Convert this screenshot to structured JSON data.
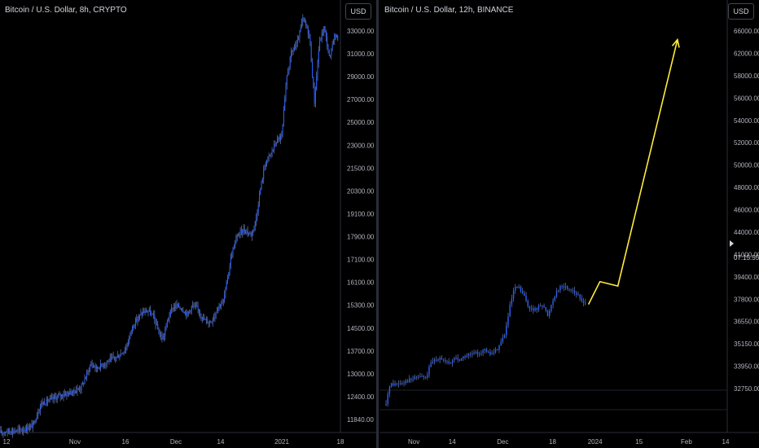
{
  "chart_data": [
    {
      "type": "candlestick",
      "title": "Bitcoin / U.S. Dollar, 8h, CRYPTO",
      "currency": "USD",
      "ytick_labels": [
        "33000.00",
        "31000.00",
        "29000.00",
        "27000.00",
        "25000.00",
        "23000.00",
        "21500.00",
        "20300.00",
        "19100.00",
        "17900.00",
        "17100.00",
        "16100.00",
        "15300.00",
        "14500.00",
        "13700.00",
        "13000.00",
        "12400.00",
        "11840.00"
      ],
      "xtick_labels": [
        "12",
        "Nov",
        "16",
        "Dec",
        "14",
        "2021",
        "18"
      ],
      "x_domain": [
        0,
        415
      ],
      "xtick_positions": [
        8,
        92,
        154,
        216,
        271,
        346,
        418
      ],
      "ylim": [
        11500,
        36500
      ],
      "price_path": [
        {
          "x": 0,
          "y": 11500
        },
        {
          "x": 10,
          "y": 11600
        },
        {
          "x": 20,
          "y": 11600
        },
        {
          "x": 30,
          "y": 11700
        },
        {
          "x": 40,
          "y": 11900
        },
        {
          "x": 45,
          "y": 12500
        },
        {
          "x": 50,
          "y": 13200
        },
        {
          "x": 60,
          "y": 13400
        },
        {
          "x": 70,
          "y": 13600
        },
        {
          "x": 80,
          "y": 13800
        },
        {
          "x": 90,
          "y": 13900
        },
        {
          "x": 100,
          "y": 14200
        },
        {
          "x": 107,
          "y": 15000
        },
        {
          "x": 112,
          "y": 15600
        },
        {
          "x": 118,
          "y": 15300
        },
        {
          "x": 125,
          "y": 15500
        },
        {
          "x": 135,
          "y": 15800
        },
        {
          "x": 145,
          "y": 16000
        },
        {
          "x": 155,
          "y": 16500
        },
        {
          "x": 162,
          "y": 17700
        },
        {
          "x": 168,
          "y": 18200
        },
        {
          "x": 175,
          "y": 18600
        },
        {
          "x": 182,
          "y": 18700
        },
        {
          "x": 189,
          "y": 18300
        },
        {
          "x": 195,
          "y": 17400
        },
        {
          "x": 200,
          "y": 17000
        },
        {
          "x": 206,
          "y": 18200
        },
        {
          "x": 212,
          "y": 18900
        },
        {
          "x": 218,
          "y": 19000
        },
        {
          "x": 224,
          "y": 18800
        },
        {
          "x": 230,
          "y": 18500
        },
        {
          "x": 236,
          "y": 19000
        },
        {
          "x": 243,
          "y": 18800
        },
        {
          "x": 250,
          "y": 18200
        },
        {
          "x": 257,
          "y": 18000
        },
        {
          "x": 262,
          "y": 18300
        },
        {
          "x": 268,
          "y": 19000
        },
        {
          "x": 274,
          "y": 19200
        },
        {
          "x": 279,
          "y": 20500
        },
        {
          "x": 284,
          "y": 22000
        },
        {
          "x": 292,
          "y": 23200
        },
        {
          "x": 300,
          "y": 23500
        },
        {
          "x": 308,
          "y": 23200
        },
        {
          "x": 314,
          "y": 24000
        },
        {
          "x": 320,
          "y": 26000
        },
        {
          "x": 326,
          "y": 27500
        },
        {
          "x": 333,
          "y": 28000
        },
        {
          "x": 340,
          "y": 28800
        },
        {
          "x": 346,
          "y": 29000
        },
        {
          "x": 352,
          "y": 32500
        },
        {
          "x": 358,
          "y": 34000
        },
        {
          "x": 365,
          "y": 34500
        },
        {
          "x": 372,
          "y": 36000
        },
        {
          "x": 380,
          "y": 35000
        },
        {
          "x": 386,
          "y": 31000
        },
        {
          "x": 392,
          "y": 34500
        },
        {
          "x": 398,
          "y": 35500
        },
        {
          "x": 405,
          "y": 33500
        },
        {
          "x": 410,
          "y": 35000
        },
        {
          "x": 415,
          "y": 34800
        }
      ]
    },
    {
      "type": "candlestick",
      "title": "Bitcoin / U.S. Dollar, 12h, BINANCE",
      "currency": "USD",
      "ytick_labels": [
        "66000.00",
        "62000.00",
        "58000.00",
        "56000.00",
        "54000.00",
        "52000.00",
        "50000.00",
        "48000.00",
        "46000.00",
        "44000.00",
        "41000.00",
        "39400.00",
        "37800.00",
        "36550.00",
        "35150.00",
        "33950.00",
        "32750.00"
      ],
      "countdown": "07:15:55",
      "xtick_labels": [
        "Nov",
        "14",
        "Dec",
        "18",
        "2024",
        "15",
        "Feb",
        "14"
      ],
      "x_domain": [
        0,
        425
      ],
      "xtick_positions": [
        42,
        89,
        151,
        212,
        264,
        318,
        376,
        424
      ],
      "ylim": [
        31500,
        68500
      ],
      "price_path": [
        {
          "x": 8,
          "y": 32800
        },
        {
          "x": 12,
          "y": 34700
        },
        {
          "x": 20,
          "y": 34800
        },
        {
          "x": 30,
          "y": 35000
        },
        {
          "x": 40,
          "y": 35200
        },
        {
          "x": 50,
          "y": 35500
        },
        {
          "x": 57,
          "y": 35300
        },
        {
          "x": 62,
          "y": 36500
        },
        {
          "x": 68,
          "y": 37000
        },
        {
          "x": 74,
          "y": 37300
        },
        {
          "x": 80,
          "y": 36800
        },
        {
          "x": 86,
          "y": 36600
        },
        {
          "x": 92,
          "y": 37200
        },
        {
          "x": 98,
          "y": 37000
        },
        {
          "x": 104,
          "y": 37300
        },
        {
          "x": 112,
          "y": 37500
        },
        {
          "x": 120,
          "y": 37600
        },
        {
          "x": 128,
          "y": 37900
        },
        {
          "x": 135,
          "y": 37500
        },
        {
          "x": 142,
          "y": 37800
        },
        {
          "x": 148,
          "y": 38500
        },
        {
          "x": 154,
          "y": 39500
        },
        {
          "x": 160,
          "y": 42000
        },
        {
          "x": 165,
          "y": 43500
        },
        {
          "x": 170,
          "y": 43700
        },
        {
          "x": 176,
          "y": 43000
        },
        {
          "x": 182,
          "y": 42000
        },
        {
          "x": 188,
          "y": 41500
        },
        {
          "x": 194,
          "y": 41800
        },
        {
          "x": 200,
          "y": 42200
        },
        {
          "x": 206,
          "y": 41000
        },
        {
          "x": 212,
          "y": 42500
        },
        {
          "x": 218,
          "y": 43500
        },
        {
          "x": 224,
          "y": 43800
        },
        {
          "x": 230,
          "y": 43600
        },
        {
          "x": 236,
          "y": 43500
        },
        {
          "x": 242,
          "y": 43000
        },
        {
          "x": 248,
          "y": 42400
        },
        {
          "x": 253,
          "y": 42300
        }
      ],
      "projection": [
        {
          "x": 256,
          "y": 42100
        },
        {
          "x": 270,
          "y": 44200
        },
        {
          "x": 292,
          "y": 43800
        },
        {
          "x": 365,
          "y": 66500
        }
      ]
    }
  ],
  "colors": {
    "background": "#000000",
    "candle": "#2962ff",
    "wick": "#5d6ba3",
    "projection": "#ffeb3b",
    "axis_text": "#b2b5be",
    "grid": "#1e222d"
  }
}
